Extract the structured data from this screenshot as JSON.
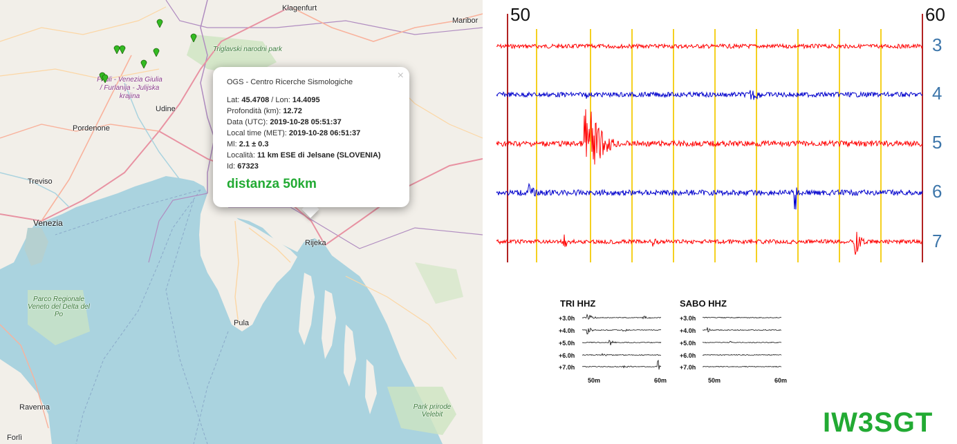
{
  "map": {
    "labels": {
      "klagenfurt": "Klagenfurt",
      "maribor": "Maribor",
      "triglav": "Triglavski narodni park",
      "friuli": "Friuli - Venezia Giulia / Furlanija - Julijska krajina",
      "udine": "Udine",
      "pordenone": "Pordenone",
      "treviso": "Treviso",
      "venezia": "Venezia",
      "rijeka": "Rijeka",
      "pula": "Pula",
      "parco_po": "Parco Regionale Veneto del Delta del Po",
      "velebit": "Park prirode Velebit",
      "ravenna": "Ravenna",
      "forli": "Forlì"
    },
    "popup": {
      "header": "OGS - Centro Ricerche Sismologiche",
      "close": "×",
      "lat_label": "Lat:",
      "lat": "45.4708",
      "lon_label": "/ Lon:",
      "lon": "14.4095",
      "depth_label": "Profondità (km):",
      "depth": "12.72",
      "utc_label": "Data (UTC):",
      "utc": "2019-10-28 05:51:37",
      "local_label": "Local time (MET):",
      "local": "2019-10-28 06:51:37",
      "ml_label": "Ml:",
      "ml": "2.1 ± 0.3",
      "loc_label": "Località:",
      "loc": "11 km ESE di Jelsane (SLOVENIA)",
      "id_label": "Id:",
      "id": "67323",
      "distance": "distanza 50km"
    }
  },
  "seismogram": {
    "x_start": "50",
    "x_end": "60",
    "rows": [
      "3",
      "4",
      "5",
      "6",
      "7"
    ],
    "colors": {
      "red": "#ff0000",
      "blue": "#0000cc",
      "yellow": "#f5d020",
      "frame": "#b22222"
    }
  },
  "mini1": {
    "title": "TRI HHZ",
    "hours": [
      "+3.0h",
      "+4.0h",
      "+5.0h",
      "+6.0h",
      "+7.0h"
    ],
    "x_labels": [
      "50m",
      "60m"
    ]
  },
  "mini2": {
    "title": "SABO HHZ",
    "hours": [
      "+3.0h",
      "+4.0h",
      "+5.0h",
      "+6.0h",
      "+7.0h"
    ],
    "x_labels": [
      "50m",
      "60m"
    ]
  },
  "callsign": "IW3SGT"
}
